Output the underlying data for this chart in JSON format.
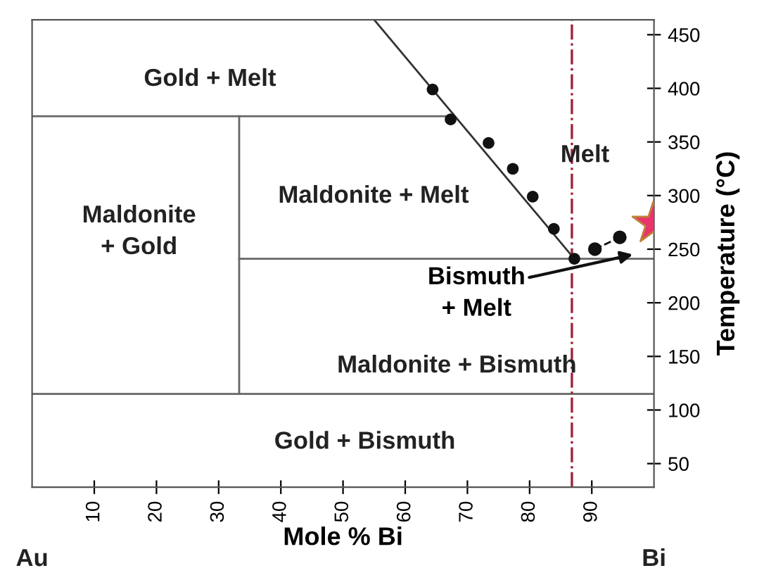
{
  "chart_data": {
    "type": "line",
    "xlabel": "Mole % Bi",
    "ylabel": "Temperature (°C)",
    "xlim": [
      0,
      100
    ],
    "ylim": [
      28,
      464
    ],
    "xticks": [
      10,
      20,
      30,
      40,
      50,
      60,
      70,
      80,
      90
    ],
    "yticks": [
      50,
      100,
      150,
      200,
      250,
      300,
      350,
      400,
      450
    ],
    "grid": false,
    "legend": false,
    "series": [
      {
        "color": "#666666",
        "x": [
          0,
          67.3
        ],
        "values": [
          374,
          374
        ]
      },
      {
        "color": "#666666",
        "x": [
          0,
          100
        ],
        "values": [
          115,
          115
        ]
      },
      {
        "color": "#666666",
        "x": [
          33.3,
          33.3
        ],
        "values": [
          115,
          374
        ]
      },
      {
        "color": "#666666",
        "x": [
          33.3,
          100
        ],
        "values": [
          241,
          241
        ]
      },
      {
        "color": "#333333",
        "x": [
          55.0,
          87.2
        ],
        "values": [
          464,
          241
        ]
      },
      {
        "type": "scatter",
        "color": "#111111",
        "marker": "circle",
        "x": [
          64.4,
          67.3,
          73.4,
          77.3,
          80.5,
          83.9,
          87.2
        ],
        "values": [
          399,
          371,
          349,
          325,
          299,
          269,
          241
        ]
      },
      {
        "color": "#111111",
        "marker": "circle",
        "line_style": "dashed",
        "x": [
          90.5,
          94.5
        ],
        "values": [
          250,
          261
        ]
      },
      {
        "type": "scatter",
        "color": "#e8336b",
        "marker": "star",
        "x": [
          99.9
        ],
        "values": [
          274
        ]
      }
    ],
    "ref_lines": [
      {
        "axis": "x",
        "value": 86.8,
        "color": "#a0203a",
        "line_style": "dashdot"
      }
    ],
    "annotations": [
      "Gold + Melt",
      "Maldonite\n+ Gold",
      "Maldonite + Melt",
      "Melt",
      "Maldonite + Bismuth",
      "Gold + Bismuth",
      "Au",
      "Bi",
      {
        "text": "Bismuth\n+ Melt",
        "x": 96.6,
        "y": 245
      }
    ]
  }
}
